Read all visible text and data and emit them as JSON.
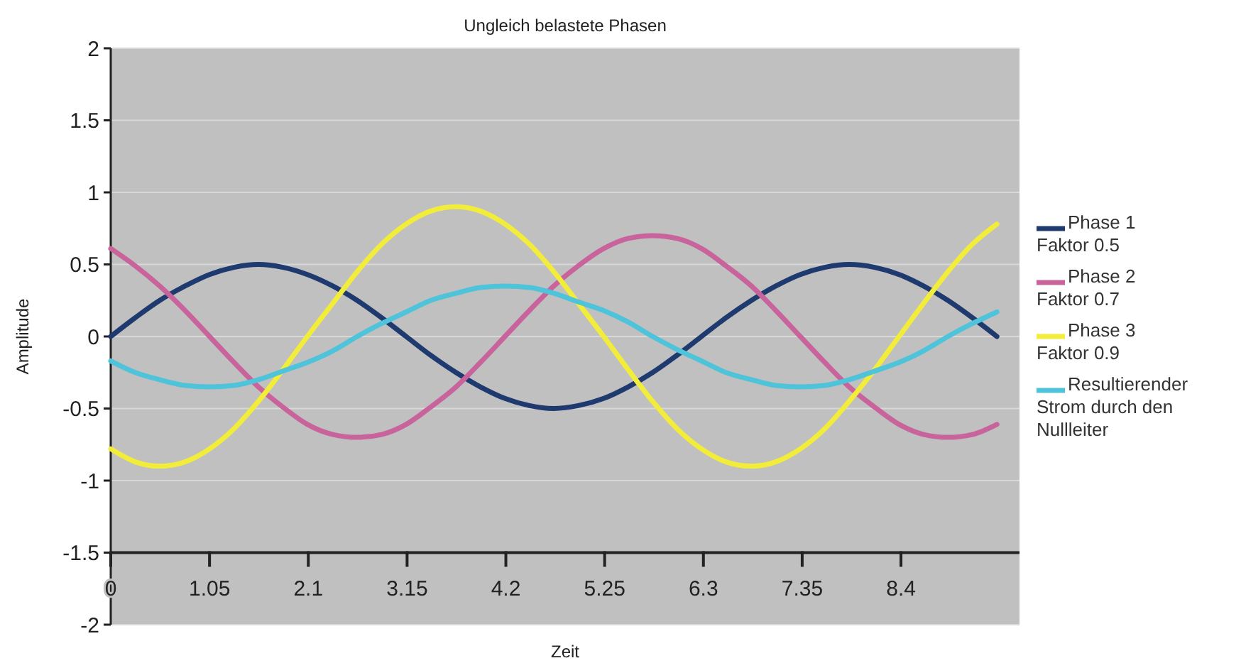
{
  "chart_data": {
    "type": "line",
    "title": "Ungleich belastete Phasen",
    "xlabel": "Zeit",
    "ylabel": "Amplitude",
    "x": [
      0,
      0.26,
      0.52,
      0.79,
      1.05,
      1.31,
      1.57,
      1.83,
      2.09,
      2.36,
      2.62,
      2.88,
      3.14,
      3.4,
      3.67,
      3.93,
      4.19,
      4.45,
      4.71,
      4.97,
      5.24,
      5.5,
      5.76,
      6.02,
      6.28,
      6.54,
      6.81,
      7.07,
      7.33,
      7.59,
      7.85,
      8.12,
      8.38,
      8.64,
      8.9,
      9.16,
      9.42
    ],
    "xlim": [
      0,
      9.66
    ],
    "xticks": [
      0,
      1.05,
      2.1,
      3.15,
      4.2,
      5.25,
      6.3,
      7.35,
      8.4
    ],
    "ylim": [
      -2,
      2
    ],
    "yticks": [
      -2,
      -1.5,
      -1,
      -0.5,
      0,
      0.5,
      1,
      1.5,
      2
    ],
    "grid": "y",
    "legend": "right",
    "marker": "none",
    "line_style": "solid",
    "series": [
      {
        "name": "Phase 1\nFaktor 0.5",
        "color": "#1f3a6e",
        "values": [
          0,
          0.13,
          0.25,
          0.35,
          0.43,
          0.48,
          0.5,
          0.48,
          0.43,
          0.35,
          0.25,
          0.13,
          0,
          -0.13,
          -0.25,
          -0.35,
          -0.43,
          -0.48,
          -0.5,
          -0.48,
          -0.43,
          -0.35,
          -0.25,
          -0.13,
          0,
          0.13,
          0.25,
          0.35,
          0.43,
          0.48,
          0.5,
          0.48,
          0.43,
          0.35,
          0.25,
          0.13,
          0
        ]
      },
      {
        "name": "Phase 2\nFaktor 0.7",
        "color": "#c8649b",
        "values": [
          0.61,
          0.49,
          0.35,
          0.18,
          0,
          -0.18,
          -0.35,
          -0.49,
          -0.61,
          -0.68,
          -0.7,
          -0.68,
          -0.61,
          -0.49,
          -0.35,
          -0.18,
          0,
          0.18,
          0.35,
          0.49,
          0.61,
          0.68,
          0.7,
          0.68,
          0.61,
          0.49,
          0.35,
          0.18,
          0,
          -0.18,
          -0.35,
          -0.49,
          -0.61,
          -0.68,
          -0.7,
          -0.68,
          -0.61
        ]
      },
      {
        "name": "Phase 3\nFaktor 0.9",
        "color": "#f2ec3a",
        "values": [
          -0.78,
          -0.87,
          -0.9,
          -0.87,
          -0.78,
          -0.64,
          -0.45,
          -0.23,
          0,
          0.23,
          0.45,
          0.64,
          0.78,
          0.87,
          0.9,
          0.87,
          0.78,
          0.64,
          0.45,
          0.23,
          0,
          -0.23,
          -0.45,
          -0.64,
          -0.78,
          -0.87,
          -0.9,
          -0.87,
          -0.78,
          -0.64,
          -0.45,
          -0.23,
          0,
          0.23,
          0.45,
          0.64,
          0.78
        ]
      },
      {
        "name": "Resultierender\nStrom durch den\nNullleiter",
        "color": "#4fc3d9",
        "values": [
          -0.17,
          -0.25,
          -0.3,
          -0.34,
          -0.35,
          -0.34,
          -0.3,
          -0.24,
          -0.18,
          -0.1,
          0,
          0.09,
          0.17,
          0.25,
          0.3,
          0.34,
          0.35,
          0.34,
          0.3,
          0.24,
          0.18,
          0.1,
          0,
          -0.09,
          -0.17,
          -0.25,
          -0.3,
          -0.34,
          -0.35,
          -0.34,
          -0.3,
          -0.24,
          -0.18,
          -0.1,
          0,
          0.09,
          0.17
        ]
      }
    ]
  }
}
